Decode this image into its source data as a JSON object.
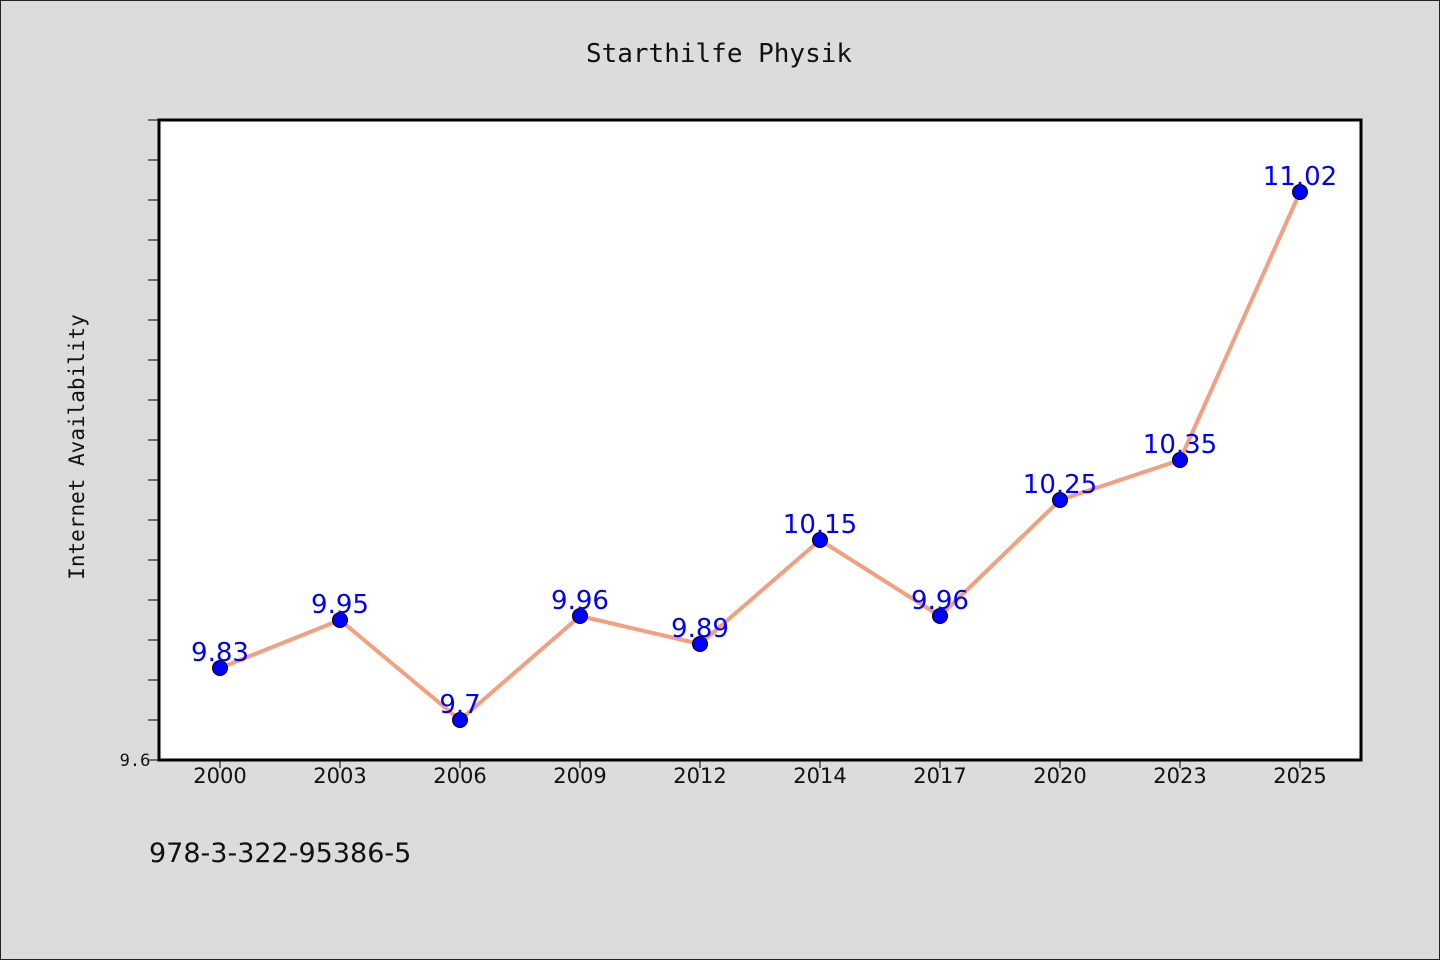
{
  "chart_data": {
    "type": "line",
    "title": "Starthilfe Physik",
    "ylabel": "Internet Availability",
    "xlabel": "",
    "categories": [
      "2000",
      "2003",
      "2006",
      "2009",
      "2012",
      "2014",
      "2017",
      "2020",
      "2023",
      "2025"
    ],
    "series": [
      {
        "values": [
          9.83,
          9.95,
          9.7,
          9.96,
          9.89,
          10.15,
          9.96,
          10.25,
          10.35,
          11.02
        ],
        "labels": [
          "9.83",
          "9.95",
          "9.7",
          "9.96",
          "9.89",
          "10.15",
          "9.96",
          "10.25",
          "10.35",
          "11.02"
        ]
      }
    ],
    "ylim": [
      9.6,
      11.2
    ],
    "yticks_labeled": [
      "9.6"
    ],
    "grid": false,
    "legend": "none",
    "colors": {
      "line": "#f4a07e",
      "marker": "#0000ff",
      "data_label": "#0000ff",
      "background": "#dcdcdc",
      "plot_background": "#ffffff"
    }
  },
  "footer_text": "978-3-322-95386-5"
}
